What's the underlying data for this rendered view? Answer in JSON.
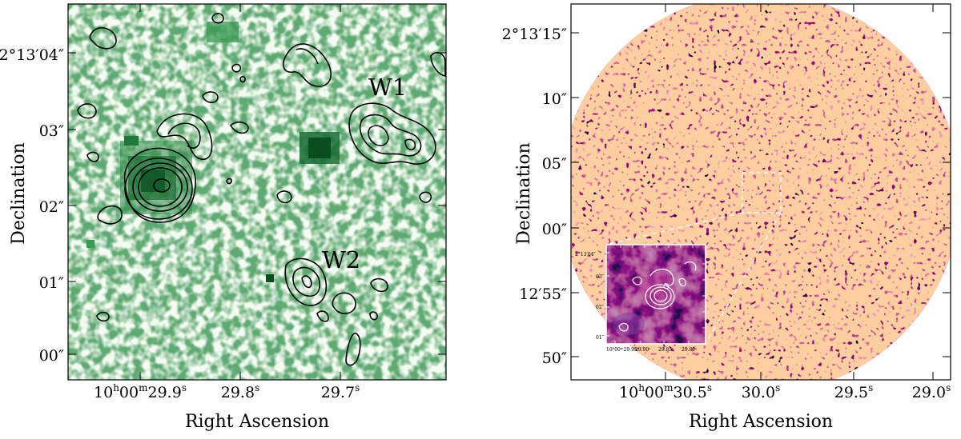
{
  "left_panel": {
    "x_axis_label": "Right Ascension",
    "y_axis_label": "Declination",
    "x_ticks": [
      {
        "ra_h": "10",
        "ra_m": "00",
        "ra_s": "29.9",
        "unit": "s"
      },
      {
        "ra_s": "29.8",
        "unit": "s"
      },
      {
        "ra_s": "29.7",
        "unit": "s"
      }
    ],
    "y_ticks": [
      {
        "deg": "2°13′04″",
        "label": "2°13′04″"
      },
      {
        "label": "03″"
      },
      {
        "label": "02″"
      },
      {
        "label": "01″"
      },
      {
        "label": "00″"
      }
    ],
    "annotations": [
      "W1",
      "W2"
    ],
    "colormap": "greens"
  },
  "right_panel": {
    "x_axis_label": "Right Ascension",
    "y_axis_label": "Declination",
    "x_ticks": [
      {
        "ra_h": "10",
        "ra_m": "00",
        "ra_s": "30.5",
        "unit": "s"
      },
      {
        "ra_s": "30.0",
        "unit": "s"
      },
      {
        "ra_s": "29.5",
        "unit": "s"
      },
      {
        "ra_s": "29.0",
        "unit": "s"
      }
    ],
    "y_ticks": [
      {
        "label": "2°13′15″"
      },
      {
        "label": "10″"
      },
      {
        "label": "05″"
      },
      {
        "label": "00″"
      },
      {
        "label": "12′55″"
      },
      {
        "label": "50″"
      }
    ],
    "colormap": "magma",
    "inset": {
      "y_ticks": [
        "2°13′04″",
        "03″",
        "02″",
        "01″"
      ],
      "x_ticks": [
        "10ʰ00ᵐ29.95ˢ",
        "29.90ˢ",
        "29.85ˢ",
        "29.80ˢ"
      ]
    }
  }
}
